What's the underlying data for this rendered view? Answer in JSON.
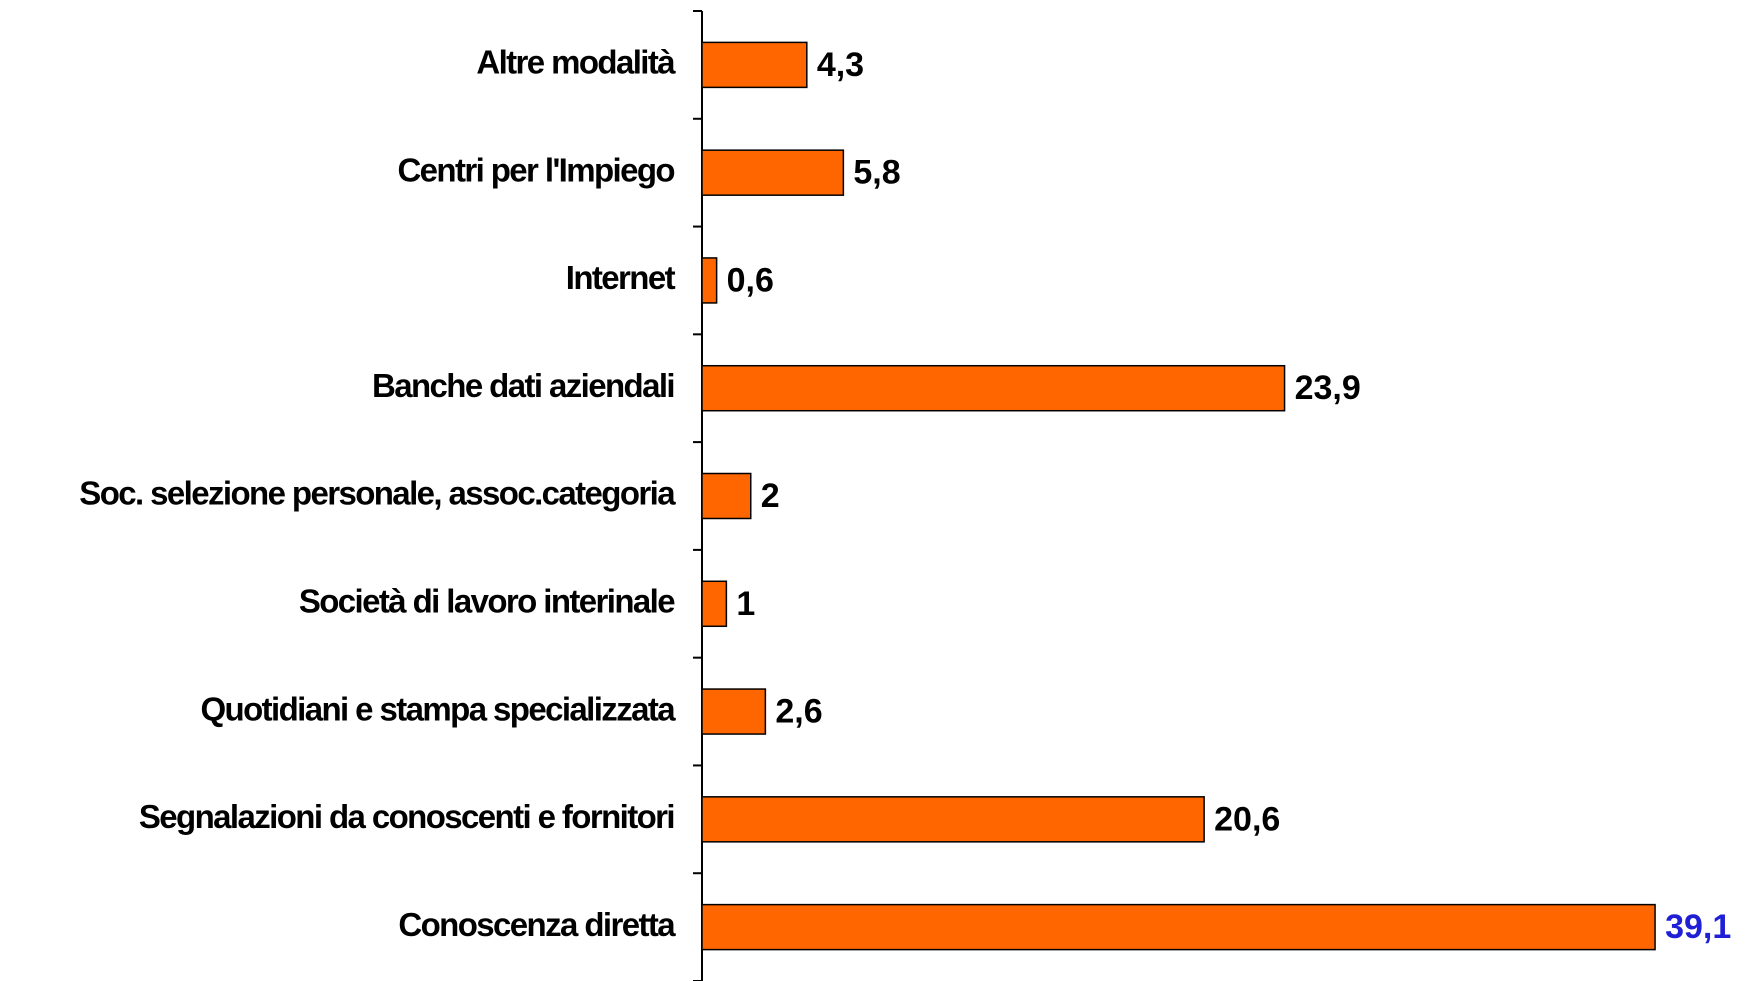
{
  "chart_data": {
    "type": "barh",
    "categories": [
      "Altre modalità",
      "Centri per l'Impiego",
      "Internet",
      "Banche dati aziendali",
      "Soc. selezione personale, assoc.categoria",
      "Società di lavoro interinale",
      "Quotidiani e stampa specializzata",
      "Segnalazioni da conoscenti e fornitori",
      "Conoscenza diretta"
    ],
    "values": [
      4.3,
      5.8,
      0.6,
      23.9,
      2,
      1,
      2.6,
      20.6,
      39.1
    ],
    "value_labels": [
      "4,3",
      "5,8",
      "0,6",
      "23,9",
      "2",
      "1",
      "2,6",
      "20,6",
      "39,1"
    ],
    "value_label_colors": [
      "#000000",
      "#000000",
      "#000000",
      "#000000",
      "#000000",
      "#000000",
      "#000000",
      "#000000",
      "#1f1fd6"
    ],
    "color": "#ff6600",
    "xlim": [
      0,
      40
    ]
  }
}
